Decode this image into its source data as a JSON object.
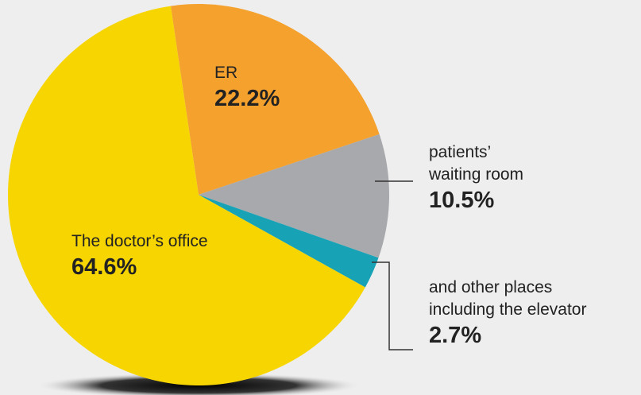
{
  "chart_data": {
    "type": "pie",
    "categories": [
      "ER",
      "patients’\nwaiting room",
      "and other places\nincluding the elevator",
      "The doctor’s office"
    ],
    "values": [
      22.2,
      10.5,
      2.7,
      64.6
    ],
    "value_labels": [
      "22.2%",
      "10.5%",
      "2.7%",
      "64.6%"
    ],
    "colors": [
      "#f4a12e",
      "#a7a9ac",
      "#17a2b5",
      "#f7d500"
    ]
  }
}
